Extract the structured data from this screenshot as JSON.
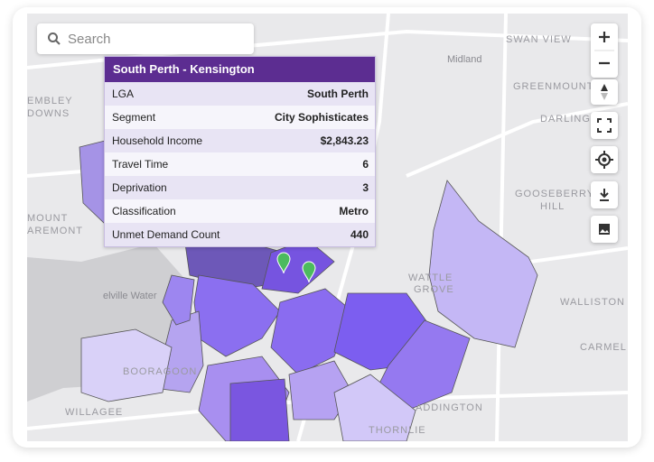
{
  "search": {
    "placeholder": "Search"
  },
  "tooltip": {
    "title": "South Perth - Kensington",
    "rows": [
      {
        "label": "LGA",
        "value": "South Perth"
      },
      {
        "label": "Segment",
        "value": "City Sophisticates"
      },
      {
        "label": "Household Income",
        "value": "$2,843.23"
      },
      {
        "label": "Travel Time",
        "value": 6
      },
      {
        "label": "Deprivation",
        "value": 3
      },
      {
        "label": "Classification",
        "value": "Metro"
      },
      {
        "label": "Unmet Demand Count",
        "value": 440
      }
    ]
  },
  "map_labels": [
    "SWAN VIEW",
    "Midland",
    "GREENMOUNT",
    "DARLINGTON",
    "GOOSEBERRY",
    "HILL",
    "WALLISTON",
    "CARMEL",
    "WATTLE",
    "GROVE",
    "elville Water",
    "BOORAGOON",
    "WILLAGEE",
    "THORNLIE",
    "ADDINGTON",
    "EMBLEY",
    "DOWNS",
    "MOUNT",
    "AREMONT"
  ]
}
